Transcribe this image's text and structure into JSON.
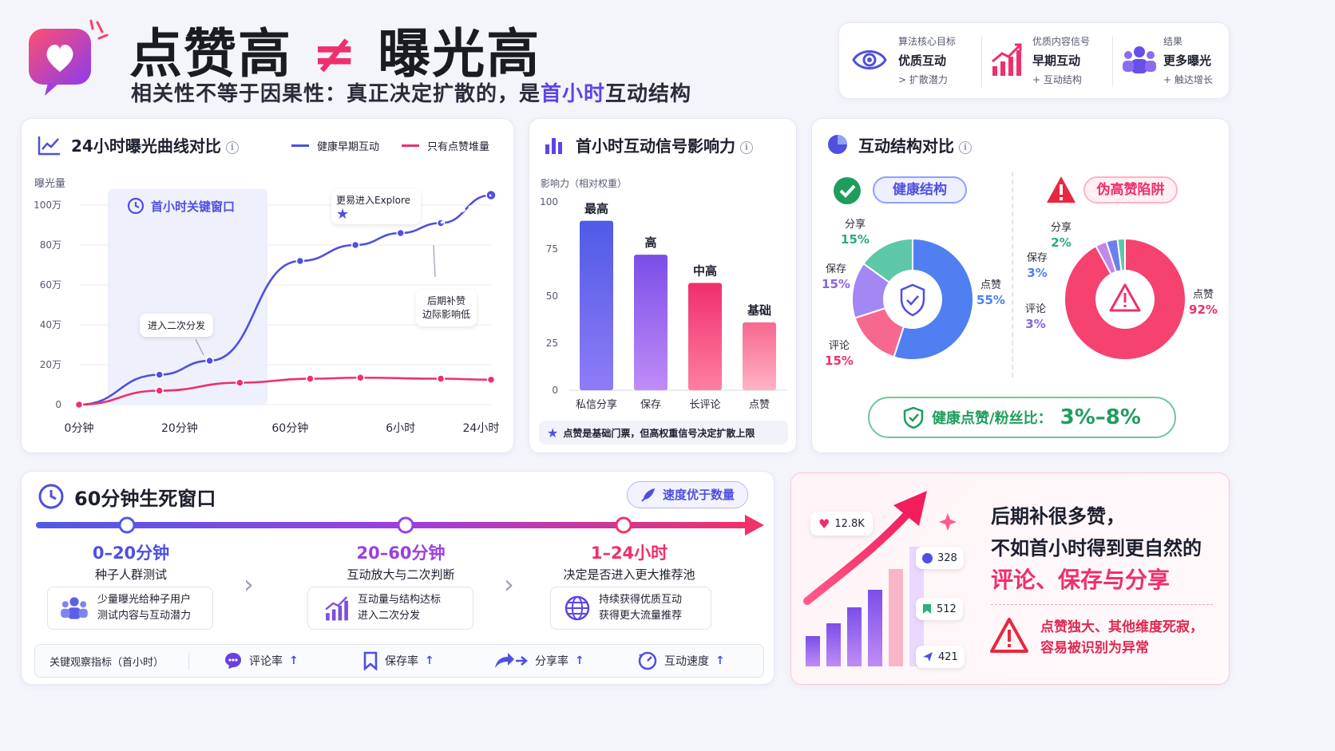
{
  "header": {
    "title_left": "点赞高",
    "title_neq": "≠",
    "title_right": "曝光高",
    "subtitle_pre": "相关性不等于因果性：真正决定扩散的，是",
    "subtitle_hl": "首小时",
    "subtitle_post": "互动结构"
  },
  "top_panel": {
    "items": [
      {
        "icon": "eye-icon",
        "small": "算法核心目标",
        "main": "优质互动",
        "sub": "> 扩散潜力"
      },
      {
        "icon": "growth-chart-icon",
        "small": "优质内容信号",
        "main": "早期互动",
        "sub": "+ 互动结构"
      },
      {
        "icon": "users-icon",
        "small": "结果",
        "main": "更多曝光",
        "sub": "+ 触达增长"
      }
    ]
  },
  "curve_card": {
    "title": "24小时曝光曲线对比",
    "info": "i",
    "legend": [
      "健康早期互动",
      "只有点赞堆量"
    ],
    "ylabel": "曝光量",
    "window_label": "首小时关键窗口",
    "annot_explore": "更易进入Explore",
    "annot_second": "进入二次分发",
    "annot_late_1": "后期补赞",
    "annot_late_2": "边际影响低"
  },
  "bars_card": {
    "title": "首小时互动信号影响力",
    "info": "i",
    "ylabel": "影响力（相对权重）",
    "note": "点赞是基础门票，但高权重信号决定扩散上限",
    "bar_labels": [
      "最高",
      "高",
      "中高",
      "基础"
    ]
  },
  "structure_card": {
    "title": "互动结构对比",
    "info": "i",
    "healthy_label": "健康结构",
    "trap_label": "伪高赞陷阱",
    "healthy_slices": [
      {
        "name": "点赞",
        "pct": "55%"
      },
      {
        "name": "评论",
        "pct": "15%"
      },
      {
        "name": "保存",
        "pct": "15%"
      },
      {
        "name": "分享",
        "pct": "15%"
      }
    ],
    "trap_slices": [
      {
        "name": "点赞",
        "pct": "92%"
      },
      {
        "name": "评论",
        "pct": "3%"
      },
      {
        "name": "保存",
        "pct": "3%"
      },
      {
        "name": "分享",
        "pct": "2%"
      }
    ],
    "ratio_label": "健康点赞/粉丝比：",
    "ratio_value": "3%–8%"
  },
  "window_card": {
    "title": "60分钟生死窗口",
    "speed_pill": "速度优于数量",
    "stages": [
      {
        "time": "0–20分钟",
        "name": "种子人群测试",
        "desc1": "少量曝光给种子用户",
        "desc2": "测试内容与互动潜力",
        "icon": "users-icon"
      },
      {
        "time": "20–60分钟",
        "name": "互动放大与二次判断",
        "desc1": "互动量与结构达标",
        "desc2": "进入二次分发",
        "icon": "growth-chart-icon"
      },
      {
        "time": "1–24小时",
        "name": "决定是否进入更大推荐池",
        "desc1": "持续获得优质互动",
        "desc2": "获得更大流量推荐",
        "icon": "globe-icon"
      }
    ],
    "metrics_label": "关键观察指标（首小时）",
    "metrics": [
      {
        "icon": "comment-icon",
        "label": "评论率",
        "arrow": "↑"
      },
      {
        "icon": "bookmark-icon",
        "label": "保存率",
        "arrow": "↑"
      },
      {
        "icon": "share-icon",
        "label": "分享率",
        "arrow": "↑"
      },
      {
        "icon": "speed-icon",
        "label": "互动速度",
        "arrow": "↑"
      }
    ]
  },
  "conclusion_card": {
    "likes_badge": "12.8K",
    "comment_badge": "328",
    "save_badge": "512",
    "share_badge": "421",
    "line1": "后期补很多赞，",
    "line2": "不如首小时得到更自然的",
    "line3": "评论、保存与分享",
    "warn1": "点赞独大、其他维度死寂，",
    "warn2": "容易被识别为异常"
  },
  "colors": {
    "accent_blue": "#5b45e6",
    "accent_pink": "#ef2f6b",
    "green": "#1f9d5c"
  },
  "chart_data": [
    {
      "type": "line",
      "title": "24小时曝光曲线对比",
      "xlabel": "",
      "ylabel": "曝光量",
      "x_ticks": [
        "0分钟",
        "20分钟",
        "60分钟",
        "6小时",
        "24小时"
      ],
      "y_ticks": [
        "0",
        "20万",
        "40万",
        "60万",
        "80万",
        "100万"
      ],
      "ylim": [
        0,
        100
      ],
      "series": [
        {
          "name": "健康早期互动",
          "color": "#4f4fe0",
          "points": [
            [
              0,
              0
            ],
            [
              0.8,
              15
            ],
            [
              1.3,
              22
            ],
            [
              2.2,
              72
            ],
            [
              2.75,
              80
            ],
            [
              3.2,
              86
            ],
            [
              3.6,
              91
            ],
            [
              4.1,
              105
            ]
          ]
        },
        {
          "name": "只有点赞堆量",
          "color": "#ef2f6b",
          "points": [
            [
              0,
              0
            ],
            [
              0.8,
              7
            ],
            [
              1.6,
              11
            ],
            [
              2.3,
              13
            ],
            [
              2.8,
              13.5
            ],
            [
              3.6,
              13
            ],
            [
              4.1,
              12.5
            ]
          ]
        }
      ]
    },
    {
      "type": "bar",
      "title": "首小时互动信号影响力",
      "ylabel": "影响力（相对权重）",
      "categories": [
        "私信分享",
        "保存",
        "长评论",
        "点赞"
      ],
      "values": [
        90,
        72,
        57,
        36
      ],
      "y_ticks": [
        "0",
        "25",
        "50",
        "75",
        "100"
      ],
      "ylim": [
        0,
        100
      ]
    },
    {
      "type": "pie",
      "title": "健康结构",
      "labels": [
        "点赞",
        "评论",
        "保存",
        "分享"
      ],
      "values": [
        55,
        15,
        15,
        15
      ]
    },
    {
      "type": "pie",
      "title": "伪高赞陷阱",
      "labels": [
        "点赞",
        "评论",
        "保存",
        "分享"
      ],
      "values": [
        92,
        3,
        3,
        2
      ]
    }
  ]
}
